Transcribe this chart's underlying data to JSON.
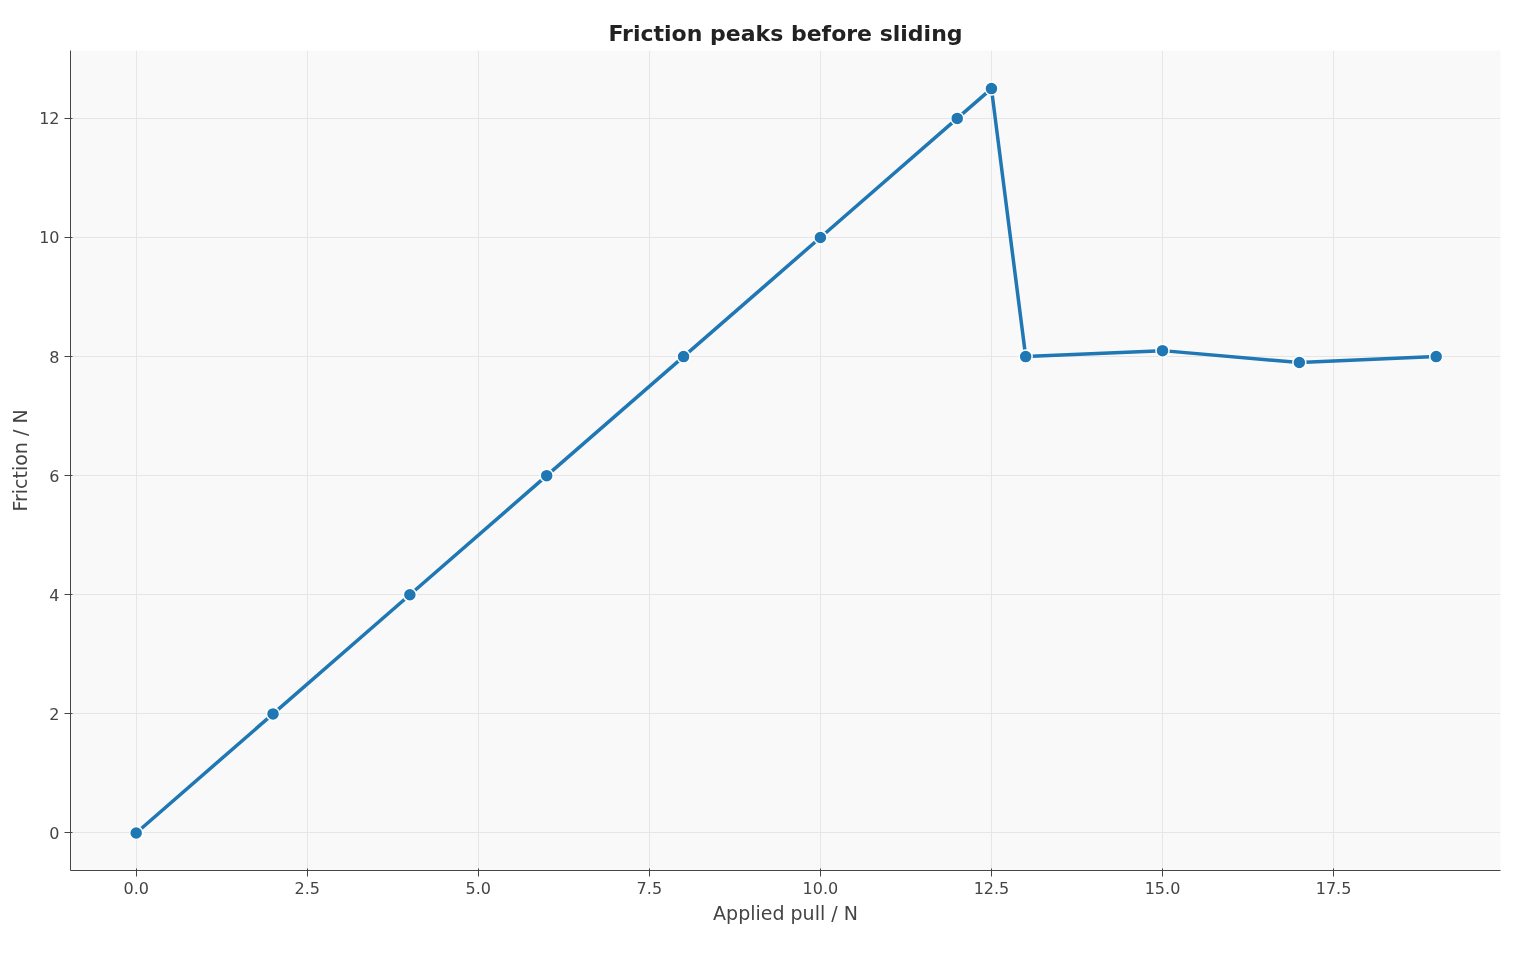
{
  "chart_data": {
    "type": "line",
    "title": "Friction peaks before sliding",
    "xlabel": "Applied pull / N",
    "ylabel": "Friction / N",
    "x": [
      0,
      2,
      4,
      6,
      8,
      10,
      12,
      12.5,
      13,
      15,
      17,
      19
    ],
    "series": [
      {
        "color": "#1f77b4",
        "values": [
          0,
          2,
          4,
          6,
          8,
          10,
          12,
          12.5,
          8,
          8.1,
          7.9,
          8
        ]
      }
    ],
    "xlim": [
      -0.96,
      19.94
    ],
    "ylim": [
      -0.63,
      13.14
    ],
    "xticks": [
      {
        "value": 0,
        "label": "0.0"
      },
      2.5,
      {
        "value": 5,
        "label": "5.0"
      },
      7.5,
      {
        "value": 10,
        "label": "10.0"
      },
      12.5,
      {
        "value": 15,
        "label": "15.0"
      },
      17.5
    ],
    "yticks": [
      0,
      2,
      4,
      6,
      8,
      10,
      12
    ],
    "grid": true,
    "marker": "circle",
    "line_style": "solid"
  }
}
